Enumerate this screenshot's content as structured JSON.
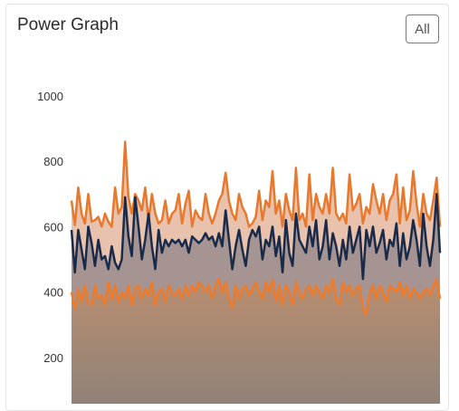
{
  "card": {
    "title": "Power Graph",
    "range_button": "All"
  },
  "colors": {
    "upper_line": "#e8782c",
    "upper_fill": "#e9c2ad",
    "lower_line": "#ee7b2c",
    "middle_line": "#1a2b4a",
    "middle_fill": "#a59491",
    "band_fill_top": "#b98e70",
    "band_fill_bottom": "#8a8078"
  },
  "chart_data": {
    "type": "area",
    "y_ticks": [
      200,
      400,
      600,
      800,
      1000
    ],
    "ylim": [
      0,
      1000
    ],
    "grid": false,
    "series": [
      {
        "values": [
          680,
          605,
          720,
          640,
          610,
          700,
          615,
          620,
          630,
          600,
          640,
          615,
          600,
          720,
          640,
          660,
          860,
          690,
          640,
          700,
          680,
          650,
          720,
          620,
          700,
          640,
          610,
          620,
          680,
          610,
          640,
          650,
          700,
          610,
          670,
          710,
          600,
          650,
          630,
          620,
          700,
          640,
          610,
          640,
          680,
          700,
          765,
          680,
          640,
          620,
          700,
          660,
          640,
          600,
          610,
          630,
          710,
          620,
          680,
          660,
          770,
          640,
          680,
          600,
          700,
          650,
          620,
          780,
          620,
          640,
          600,
          760,
          620,
          700,
          660,
          640,
          700,
          640,
          780,
          640,
          620,
          640,
          610,
          760,
          650,
          670,
          700,
          610,
          660,
          640,
          730,
          680,
          640,
          700,
          620,
          680,
          700,
          760,
          610,
          720,
          620,
          650,
          770,
          670,
          600,
          700,
          640,
          620,
          680,
          750,
          600
        ]
      },
      {
        "values": [
          590,
          460,
          590,
          530,
          470,
          600,
          550,
          480,
          560,
          500,
          510,
          470,
          540,
          490,
          470,
          500,
          690,
          570,
          510,
          690,
          600,
          500,
          560,
          640,
          540,
          470,
          590,
          520,
          560,
          540,
          560,
          550,
          560,
          540,
          560,
          520,
          570,
          560,
          550,
          560,
          580,
          560,
          570,
          540,
          580,
          540,
          650,
          560,
          470,
          540,
          590,
          530,
          480,
          560,
          590,
          570,
          600,
          500,
          560,
          540,
          600,
          510,
          570,
          460,
          620,
          520,
          480,
          640,
          560,
          540,
          520,
          600,
          540,
          620,
          500,
          540,
          620,
          500,
          580,
          540,
          480,
          560,
          500,
          600,
          520,
          560,
          600,
          440,
          590,
          540,
          600,
          520,
          550,
          590,
          500,
          560,
          540,
          610,
          480,
          580,
          500,
          540,
          620,
          560,
          480,
          640,
          540,
          480,
          560,
          700,
          520
        ]
      },
      {
        "values": [
          400,
          350,
          410,
          370,
          420,
          370,
          360,
          420,
          380,
          390,
          360,
          430,
          380,
          420,
          370,
          400,
          380,
          420,
          360,
          410,
          420,
          380,
          410,
          390,
          430,
          360,
          400,
          410,
          370,
          420,
          400,
          390,
          410,
          380,
          420,
          390,
          420,
          400,
          430,
          420,
          400,
          420,
          380,
          420,
          440,
          400,
          430,
          380,
          350,
          420,
          380,
          410,
          420,
          390,
          410,
          430,
          400,
          380,
          430,
          400,
          440,
          370,
          420,
          360,
          420,
          400,
          360,
          430,
          400,
          380,
          410,
          420,
          390,
          420,
          400,
          380,
          420,
          400,
          440,
          380,
          360,
          430,
          400,
          420,
          390,
          410,
          420,
          350,
          330,
          400,
          420,
          380,
          420,
          400,
          370,
          420,
          410,
          400,
          430,
          390,
          420,
          380,
          410,
          400,
          380,
          400,
          410,
          390,
          420,
          440,
          380
        ]
      }
    ]
  }
}
